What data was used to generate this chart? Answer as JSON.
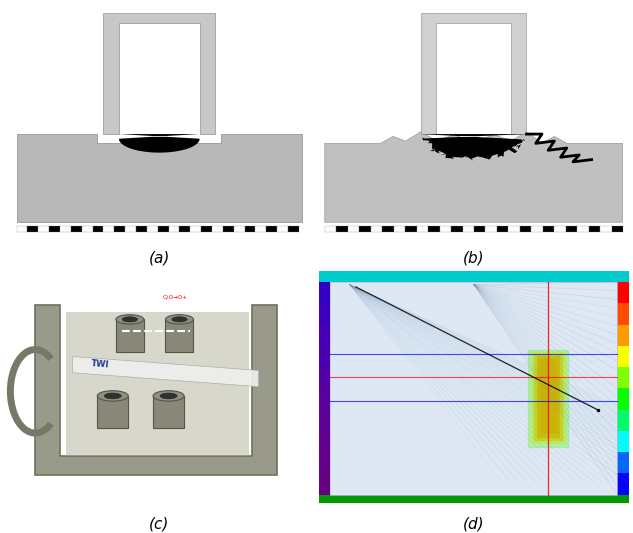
{
  "figure_width": 6.33,
  "figure_height": 5.33,
  "dpi": 100,
  "background_color": "#ffffff",
  "labels": [
    "(a)",
    "(b)",
    "(c)",
    "(d)"
  ],
  "label_fontsize": 11,
  "subplot_grid": [
    2,
    2
  ]
}
